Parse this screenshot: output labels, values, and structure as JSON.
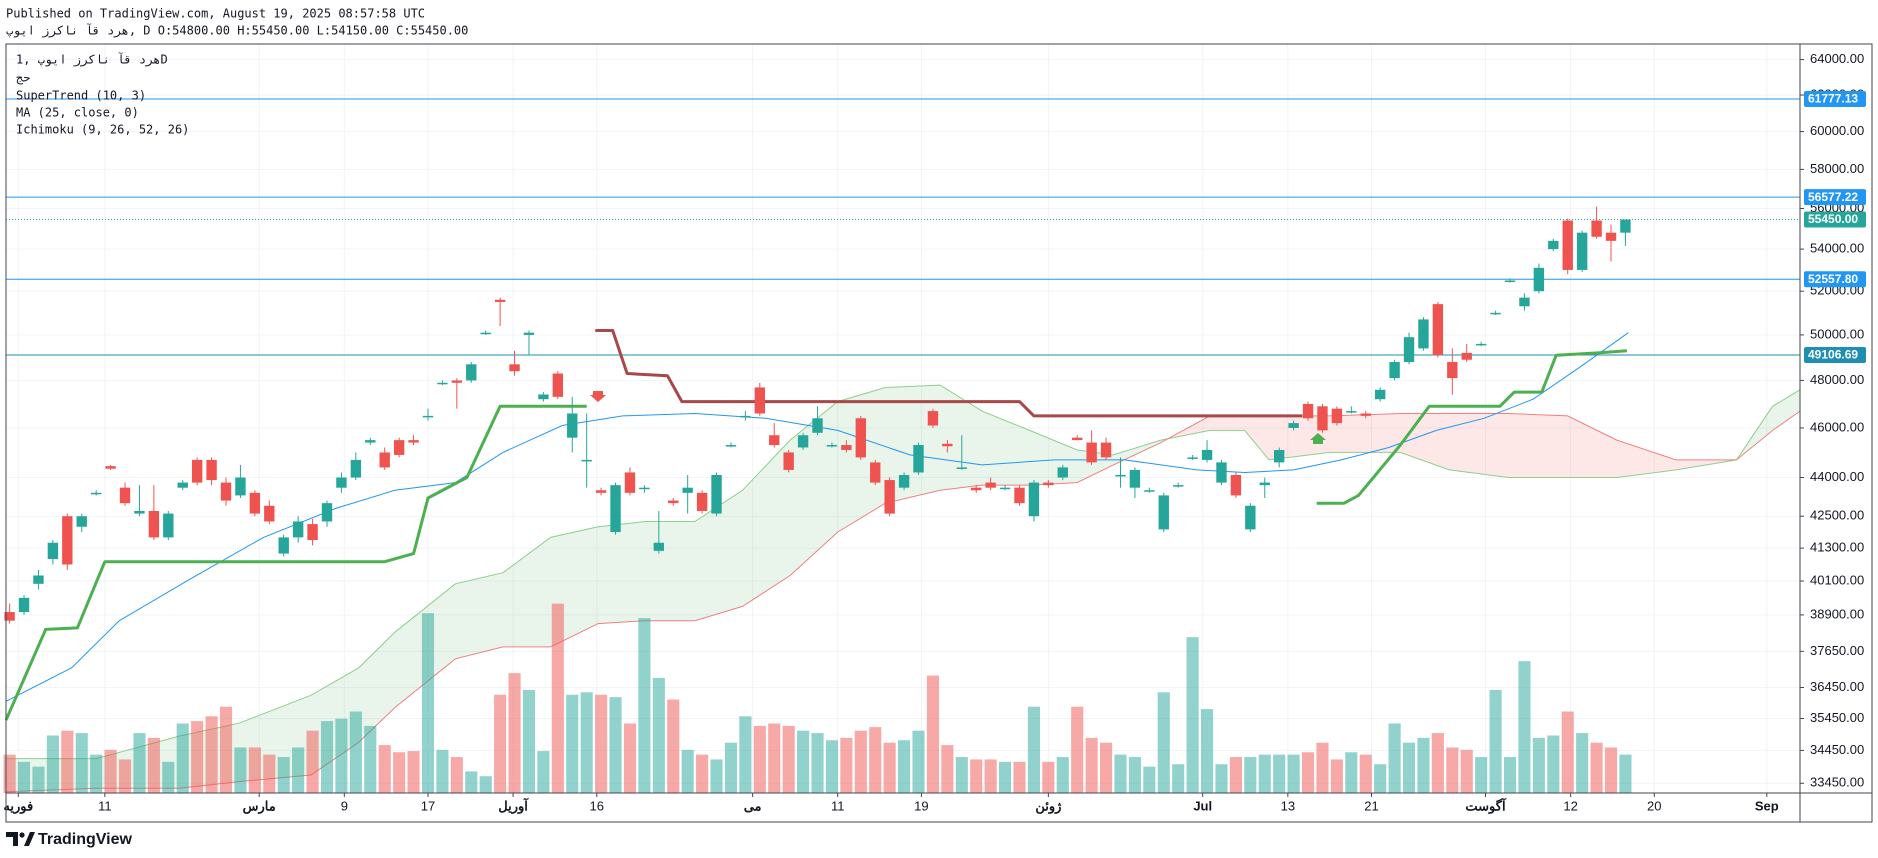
{
  "chart_data": {
    "type": "candlestick",
    "header": [
      "Published on TradingView.com, August 19, 2025 08:57:58 UTC",
      "هرد قآ ناکرز ایوپ, D O:54800.00 H:55450.00 L:54150.00 C:55450.00"
    ],
    "legend": [
      "هرد قآ ناکرز ایوپ ,1D",
      "حج",
      "SuperTrend (10, 3)",
      "MA (25, close, 0)",
      "Ichimoku (9, 26, 52, 26)"
    ],
    "brand": "TradingView",
    "up_color": "#26a69a",
    "down_color": "#ef5350",
    "x": [
      0,
      1,
      2,
      3,
      4,
      5,
      6,
      7,
      8,
      9,
      10,
      11,
      12,
      13,
      14,
      15,
      16,
      17,
      18,
      19,
      20,
      21,
      22,
      23,
      24,
      25,
      26,
      27,
      28,
      29,
      30,
      31,
      32,
      33,
      34,
      35,
      36,
      37,
      38,
      39,
      40,
      41,
      42,
      43,
      44,
      45,
      46,
      47,
      48,
      49,
      50,
      51,
      52,
      53,
      54,
      55,
      56,
      57,
      58,
      59,
      60,
      61,
      62,
      63,
      64,
      65,
      66,
      67,
      68,
      69,
      70,
      71,
      72,
      73,
      74,
      75,
      76,
      77,
      78,
      79,
      80,
      81,
      82,
      83,
      84,
      85,
      86,
      87,
      88,
      89,
      90,
      91,
      92,
      93,
      94,
      95,
      96,
      97,
      98,
      99,
      100,
      101,
      102,
      103,
      104,
      105,
      106,
      107,
      108,
      109,
      110,
      111,
      112
    ],
    "open": [
      39000,
      39000,
      40000,
      40900,
      42500,
      42100,
      43400,
      44450,
      43600,
      42600,
      42700,
      41700,
      43600,
      44700,
      44700,
      43800,
      43300,
      43400,
      42900,
      41100,
      41700,
      42200,
      42300,
      43600,
      44000,
      45400,
      45000,
      45500,
      45500,
      46500,
      47900,
      48000,
      48000,
      50100,
      51600,
      48700,
      50000,
      47200,
      48300,
      45600,
      44700,
      43500,
      41900,
      44200,
      43600,
      41200,
      43100,
      43400,
      43400,
      42600,
      45300,
      46500,
      47700,
      45700,
      45000,
      45200,
      45800,
      45300,
      45300,
      46400,
      44600,
      43900,
      43600,
      44200,
      46700,
      45350,
      44400,
      43600,
      43800,
      43600,
      43600,
      42500,
      43800,
      44000,
      45600,
      45400,
      45400,
      44100,
      43600,
      43500,
      42000,
      43700,
      44800,
      44700,
      43800,
      44100,
      42000,
      43700,
      44600,
      46000,
      47000,
      46900,
      46800,
      46700,
      46600,
      47200,
      48100,
      48800,
      49400,
      51400,
      48800,
      49200,
      49600,
      51000,
      52500,
      51300,
      52000,
      54000,
      55400,
      53000,
      55400,
      54800,
      54800
    ],
    "high": [
      39300,
      39600,
      40500,
      41600,
      42600,
      42600,
      43500,
      44500,
      43800,
      43700,
      43700,
      42700,
      43900,
      44800,
      44800,
      44000,
      44500,
      43500,
      43100,
      41800,
      42500,
      42400,
      43100,
      44200,
      45000,
      45600,
      45200,
      45600,
      45700,
      46800,
      48000,
      48100,
      48800,
      50200,
      51700,
      49300,
      50200,
      47500,
      48400,
      47300,
      46600,
      43600,
      43800,
      44400,
      43700,
      42700,
      43200,
      44100,
      43500,
      44200,
      45400,
      46700,
      47900,
      46200,
      45100,
      45800,
      46900,
      45400,
      45500,
      46500,
      44700,
      44000,
      44200,
      45400,
      46800,
      45500,
      45700,
      43700,
      44000,
      43700,
      43700,
      43900,
      43900,
      44500,
      45700,
      45900,
      45600,
      44800,
      44400,
      43600,
      43400,
      43800,
      44900,
      45500,
      44700,
      44200,
      43000,
      44000,
      45200,
      46300,
      47100,
      47000,
      46900,
      46900,
      46700,
      47700,
      48900,
      50100,
      50800,
      51500,
      49400,
      49600,
      49700,
      51100,
      52600,
      51900,
      53300,
      54500,
      55500,
      54900,
      56100,
      55200,
      55450
    ],
    "low": [
      38600,
      38900,
      39800,
      40700,
      40500,
      41900,
      43300,
      44300,
      42900,
      42500,
      41600,
      41600,
      43500,
      43700,
      43700,
      42900,
      43200,
      42500,
      42200,
      41000,
      41500,
      41400,
      42100,
      43400,
      43900,
      45300,
      44300,
      44800,
      45300,
      46300,
      47800,
      46800,
      47900,
      50000,
      50400,
      48200,
      49100,
      47100,
      47200,
      45000,
      43600,
      43300,
      41800,
      43300,
      43400,
      41100,
      42900,
      42600,
      42600,
      42500,
      45200,
      46300,
      46500,
      45200,
      44200,
      45100,
      45700,
      45200,
      45000,
      44700,
      43700,
      42500,
      43500,
      44100,
      46000,
      45000,
      44300,
      43400,
      43500,
      43500,
      42900,
      42300,
      43600,
      43900,
      45500,
      44500,
      44700,
      43600,
      43200,
      43400,
      41900,
      43600,
      44700,
      44600,
      43700,
      43200,
      41900,
      43200,
      44400,
      45900,
      46300,
      45800,
      46100,
      46600,
      46400,
      47100,
      48000,
      48700,
      49300,
      49000,
      47400,
      48800,
      49500,
      50900,
      52400,
      51100,
      51900,
      53900,
      52800,
      52900,
      54500,
      53400,
      54150
    ],
    "close": [
      38700,
      39500,
      40300,
      41500,
      40700,
      42500,
      43400,
      44350,
      43000,
      42700,
      41700,
      42600,
      43800,
      43800,
      43900,
      43100,
      44000,
      42600,
      42300,
      41700,
      42300,
      41600,
      43000,
      44000,
      44700,
      45500,
      44400,
      44900,
      45400,
      46500,
      47900,
      47900,
      48700,
      50100,
      51500,
      48400,
      50100,
      47400,
      47300,
      46600,
      44700,
      43400,
      43700,
      43400,
      43600,
      41500,
      43000,
      43600,
      42700,
      44100,
      45300,
      46500,
      46600,
      45300,
      44300,
      45700,
      46400,
      45300,
      45100,
      44800,
      43800,
      42600,
      44100,
      45300,
      46100,
      45250,
      44400,
      43500,
      43600,
      43600,
      43000,
      43800,
      43700,
      44400,
      45500,
      44600,
      44800,
      44100,
      44300,
      43500,
      43300,
      43700,
      44800,
      45100,
      44600,
      43300,
      42900,
      43800,
      45100,
      46200,
      46400,
      45900,
      46200,
      46700,
      46500,
      47600,
      48800,
      49900,
      50700,
      49100,
      48100,
      48900,
      49600,
      51000,
      52500,
      51700,
      53100,
      54400,
      53000,
      54800,
      54600,
      54400,
      55450
    ],
    "volume": [
      32,
      26,
      22,
      48,
      52,
      50,
      32,
      36,
      28,
      50,
      46,
      26,
      58,
      60,
      64,
      72,
      38,
      38,
      32,
      30,
      38,
      52,
      60,
      62,
      68,
      56,
      40,
      34,
      35,
      150,
      36,
      30,
      18,
      14,
      82,
      100,
      86,
      35,
      158,
      82,
      84,
      82,
      80,
      58,
      146,
      96,
      78,
      36,
      32,
      28,
      42,
      64,
      56,
      58,
      56,
      52,
      50,
      44,
      46,
      52,
      55,
      42,
      44,
      52,
      98,
      40,
      30,
      28,
      28,
      26,
      26,
      72,
      26,
      30,
      72,
      46,
      42,
      32,
      30,
      22,
      84,
      24,
      130,
      70,
      24,
      30,
      30,
      32,
      32,
      32,
      34,
      42,
      28,
      34,
      32,
      24,
      58,
      42,
      46,
      50,
      38,
      36,
      30,
      86,
      30,
      110,
      46,
      48,
      68,
      50,
      42,
      38,
      32
    ],
    "volume_lim": [
      0,
      625
    ],
    "xlim": [
      -0.25,
      124.1
    ],
    "xticks": [
      {
        "value": 0.6,
        "label": "فوریه"
      },
      {
        "value": 6.6,
        "label": "11"
      },
      {
        "value": 17.3,
        "label": "مارس"
      },
      {
        "value": 23.2,
        "label": "9"
      },
      {
        "value": 29,
        "label": "17"
      },
      {
        "value": 34.9,
        "label": "آوریل"
      },
      {
        "value": 40.7,
        "label": "16"
      },
      {
        "value": 51.5,
        "label": "می"
      },
      {
        "value": 57.4,
        "label": "11"
      },
      {
        "value": 63.2,
        "label": "19"
      },
      {
        "value": 72,
        "label": "ژوئن"
      },
      {
        "value": 82.7,
        "label": "Jul"
      },
      {
        "value": 88.6,
        "label": "13"
      },
      {
        "value": 94.4,
        "label": "21"
      },
      {
        "value": 102.3,
        "label": "آگوست"
      },
      {
        "value": 108.2,
        "label": "12"
      },
      {
        "value": 114,
        "label": "20"
      },
      {
        "value": 121.8,
        "label": "Sep"
      }
    ],
    "ylim": [
      33160,
      64900
    ],
    "log": true,
    "grid": true,
    "yticks": [
      {
        "value": 64000,
        "label": "64000.00"
      },
      {
        "value": 62000,
        "label": "62000.00"
      },
      {
        "value": 60000,
        "label": "60000.00"
      },
      {
        "value": 58000,
        "label": "58000.00"
      },
      {
        "value": 56000,
        "label": "56000.00"
      },
      {
        "value": 54000,
        "label": "54000.00"
      },
      {
        "value": 52000,
        "label": "52000.00"
      },
      {
        "value": 50000,
        "label": "50000.00"
      },
      {
        "value": 48000,
        "label": "48000.00"
      },
      {
        "value": 46000,
        "label": "46000.00"
      },
      {
        "value": 44000,
        "label": "44000.00"
      },
      {
        "value": 42500,
        "label": "42500.00"
      },
      {
        "value": 41300,
        "label": "41300.00"
      },
      {
        "value": 40100,
        "label": "40100.00"
      },
      {
        "value": 38900,
        "label": "38900.00"
      },
      {
        "value": 37650,
        "label": "37650.00"
      },
      {
        "value": 36450,
        "label": "36450.00"
      },
      {
        "value": 35450,
        "label": "35450.00"
      },
      {
        "value": 34450,
        "label": "34450.00"
      },
      {
        "value": 33450,
        "label": "33450.00"
      }
    ],
    "hlines": {
      "values": [
        61777.13,
        56577.22,
        52557.8,
        49106.69
      ],
      "value_labels": [
        "61777.13",
        "56577.22",
        "52557.80",
        "49106.69"
      ],
      "colors": [
        "#2196f3",
        "#2196f3",
        "#2196f3",
        "#1e8fb0"
      ]
    },
    "last_price": {
      "value": 55450,
      "value_label": "55450.00",
      "color": "#26a69a"
    },
    "supertrend": [
      {
        "color": "#4caf50",
        "x": [
          -0.25,
          2.5,
          4.7,
          6.6,
          26,
          28,
          29,
          31.7,
          34,
          40
        ],
        "values": [
          35400,
          38400,
          38450,
          40800,
          40800,
          41100,
          43200,
          44000,
          46900,
          46900
        ]
      },
      {
        "color": "#a84848",
        "x": [
          40.6,
          41.8,
          42.8,
          45.6,
          46.6,
          70,
          71,
          89.6
        ],
        "values": [
          50200,
          50200,
          48300,
          48200,
          47100,
          47100,
          46500,
          46500
        ]
      },
      {
        "color": "#4caf50",
        "x": [
          90.6,
          92.5,
          93.5,
          96.4,
          98.4,
          103.3,
          104.3,
          106.2,
          107.2,
          110.1,
          112.1
        ],
        "values": [
          43000,
          43000,
          43300,
          45300,
          46900,
          46900,
          47500,
          47500,
          49100,
          49200,
          49300
        ]
      }
    ],
    "ma": {
      "color": "#2196f3",
      "x": [
        -0.25,
        4.3,
        7.6,
        12.6,
        17.6,
        22.6,
        26.7,
        30.9,
        34.2,
        38.3,
        42.5,
        47.5,
        52.4,
        57.4,
        62.4,
        67.4,
        72.4,
        77.3,
        82.3,
        85.6,
        89,
        92.3,
        95.6,
        98.9,
        102.2,
        105.6,
        108.9,
        112.2
      ],
      "values": [
        36000,
        37100,
        38700,
        40200,
        41700,
        42800,
        43500,
        43800,
        45000,
        46100,
        46500,
        46600,
        46400,
        45900,
        44900,
        44500,
        44700,
        44700,
        44300,
        44200,
        44300,
        44700,
        45200,
        45900,
        46400,
        47200,
        48600,
        50100
      ]
    },
    "ichimoku": {
      "span_a_color": "#8ccf8c",
      "span_b_color": "#f08080",
      "up_fill": "rgba(76,175,80,0.12)",
      "down_fill": "rgba(244,67,54,0.12)",
      "x": [
        -0.25,
        6,
        11.8,
        15.9,
        20.9,
        24.2,
        26.7,
        30.9,
        34.2,
        37.5,
        40.8,
        44.1,
        47.5,
        50.8,
        54.1,
        57.4,
        60.7,
        64.5,
        67.4,
        70.7,
        74,
        76.5,
        79.8,
        83.2,
        85.6,
        87.3,
        91.5,
        96.4,
        99.8,
        103.9,
        108,
        111.4,
        115.5,
        119.7,
        122.2,
        124.1
      ],
      "span_a": [
        34200,
        34200,
        34900,
        35300,
        36200,
        37100,
        38300,
        40000,
        40400,
        41700,
        42100,
        42300,
        42300,
        43500,
        45500,
        47100,
        47700,
        47800,
        46700,
        45900,
        45100,
        44900,
        45500,
        45900,
        45900,
        44700,
        45000,
        45000,
        44300,
        44000,
        44000,
        44000,
        44300,
        44700,
        46900,
        47600
      ],
      "span_b": [
        33200,
        33300,
        33300,
        33500,
        33700,
        34700,
        35800,
        37400,
        37800,
        37800,
        38600,
        38700,
        38700,
        39200,
        40300,
        41900,
        43000,
        43500,
        43700,
        43700,
        43800,
        44500,
        45400,
        46500,
        46500,
        46500,
        46500,
        46600,
        46600,
        46600,
        46500,
        45500,
        44700,
        44700,
        45900,
        46700
      ]
    }
  }
}
